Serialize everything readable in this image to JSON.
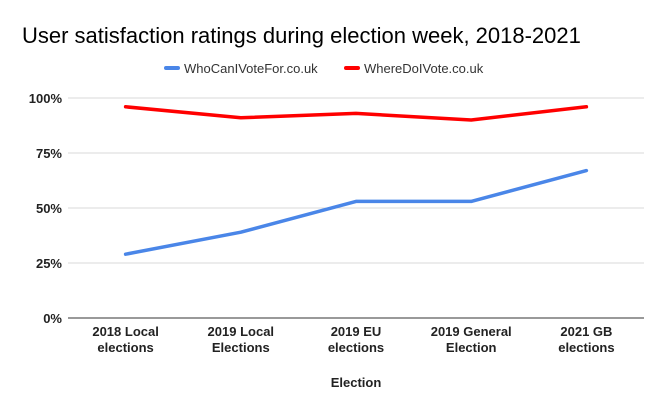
{
  "chart_data": {
    "type": "line",
    "title": "User satisfaction ratings during election week, 2018-2021",
    "xlabel": "Election",
    "ylabel": "",
    "categories": [
      [
        "2018 Local",
        "elections"
      ],
      [
        "2019 Local",
        "Elections"
      ],
      [
        "2019 EU",
        "elections"
      ],
      [
        "2019 General",
        "Election"
      ],
      [
        "2021 GB",
        "elections"
      ]
    ],
    "ylim": [
      0,
      1
    ],
    "yticks": [
      "0%",
      "25%",
      "50%",
      "75%",
      "100%"
    ],
    "legend_position": "top",
    "grid": true,
    "series": [
      {
        "name": "WhoCanIVoteFor.co.uk",
        "color": "#4a86e8",
        "values": [
          0.29,
          0.39,
          0.53,
          0.53,
          0.67
        ]
      },
      {
        "name": "WhereDoIVote.co.uk",
        "color": "#ff0000",
        "values": [
          0.96,
          0.91,
          0.93,
          0.9,
          0.96
        ]
      }
    ]
  }
}
